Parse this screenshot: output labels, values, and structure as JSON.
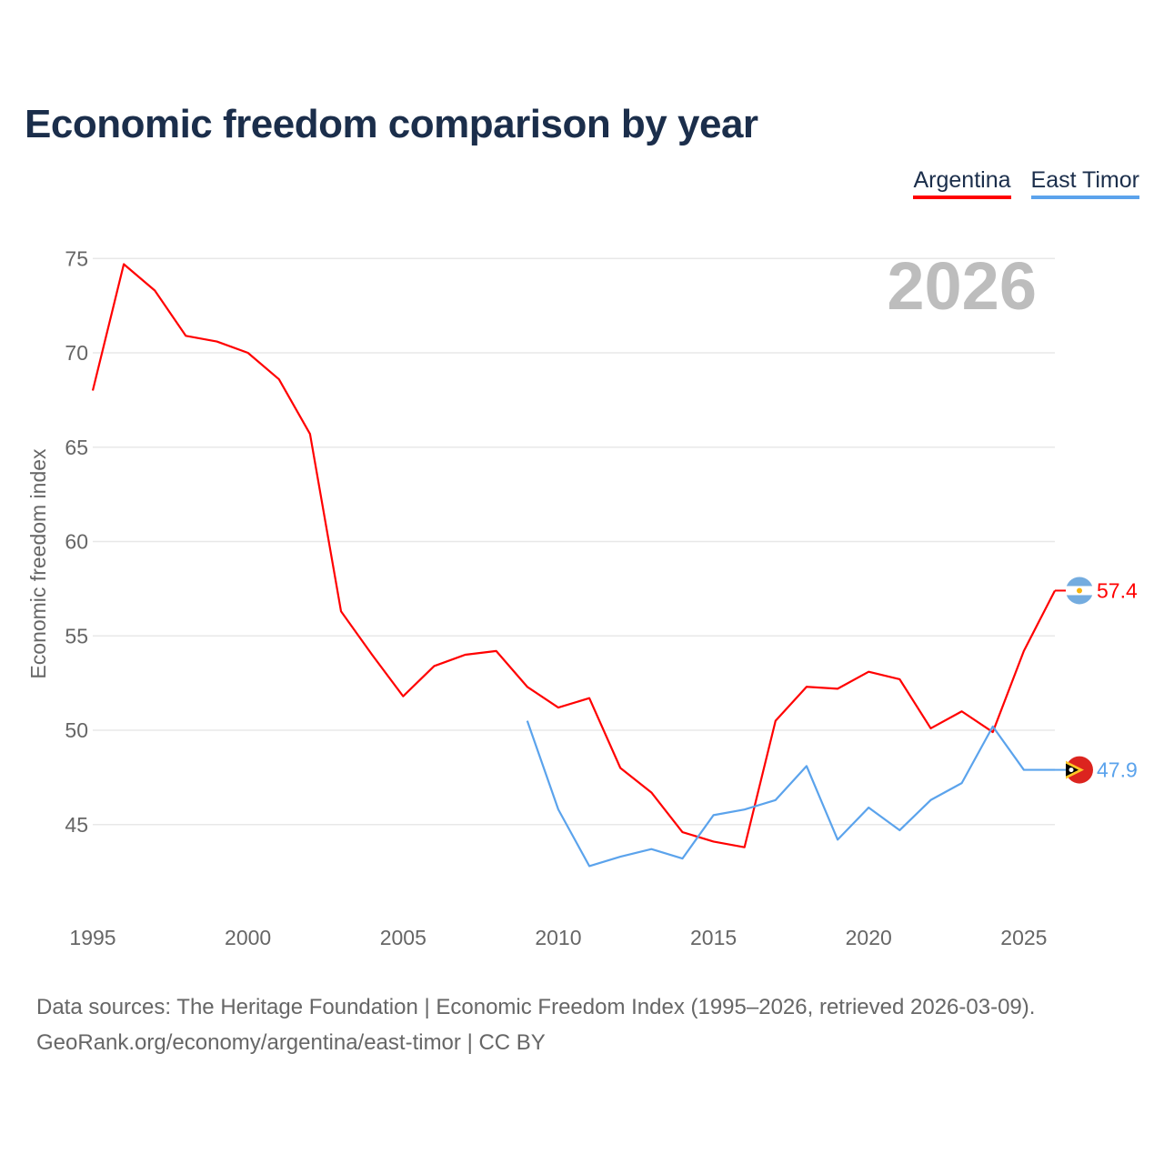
{
  "title": "Economic freedom comparison by year",
  "footer": {
    "line1": "Data sources: The Heritage Foundation | Economic Freedom Index (1995–2026, retrieved 2026-03-09).",
    "line2": "GeoRank.org/economy/argentina/east-timor | CC BY"
  },
  "chart_data": {
    "type": "line",
    "title": "Economic freedom comparison by year",
    "xlabel": "",
    "ylabel": "Economic freedom index",
    "year_watermark": "2026",
    "xlim": [
      1995,
      2026
    ],
    "ylim": [
      40,
      76.5
    ],
    "xticks": [
      1995,
      2000,
      2005,
      2010,
      2015,
      2020,
      2025
    ],
    "yticks": [
      45,
      50,
      55,
      60,
      65,
      70,
      75
    ],
    "grid": true,
    "legend_position": "top-right",
    "series": [
      {
        "name": "Argentina",
        "color": "#ff0000",
        "end_label": "57.4",
        "flag": "argentina-flag-icon",
        "x": [
          1995,
          1996,
          1997,
          1998,
          1999,
          2000,
          2001,
          2002,
          2003,
          2004,
          2005,
          2006,
          2007,
          2008,
          2009,
          2010,
          2011,
          2012,
          2013,
          2014,
          2015,
          2016,
          2017,
          2018,
          2019,
          2020,
          2021,
          2022,
          2023,
          2024,
          2025,
          2026
        ],
        "values": [
          68.0,
          74.7,
          73.3,
          70.9,
          70.6,
          70.0,
          68.6,
          65.7,
          56.3,
          54.0,
          51.8,
          53.4,
          54.0,
          54.2,
          52.3,
          51.2,
          51.7,
          48.0,
          46.7,
          44.6,
          44.1,
          43.8,
          50.5,
          52.3,
          52.2,
          53.1,
          52.7,
          50.1,
          51.0,
          49.9,
          54.2,
          57.4
        ]
      },
      {
        "name": "East Timor",
        "color": "#5ba3ec",
        "end_label": "47.9",
        "flag": "east-timor-flag-icon",
        "x": [
          2009,
          2010,
          2011,
          2012,
          2013,
          2014,
          2015,
          2016,
          2017,
          2018,
          2019,
          2020,
          2021,
          2022,
          2023,
          2024,
          2025,
          2026
        ],
        "values": [
          50.5,
          45.8,
          42.8,
          43.3,
          43.7,
          43.2,
          45.5,
          45.8,
          46.3,
          48.1,
          44.2,
          45.9,
          44.7,
          46.3,
          47.2,
          50.2,
          47.9,
          47.9
        ]
      }
    ]
  }
}
